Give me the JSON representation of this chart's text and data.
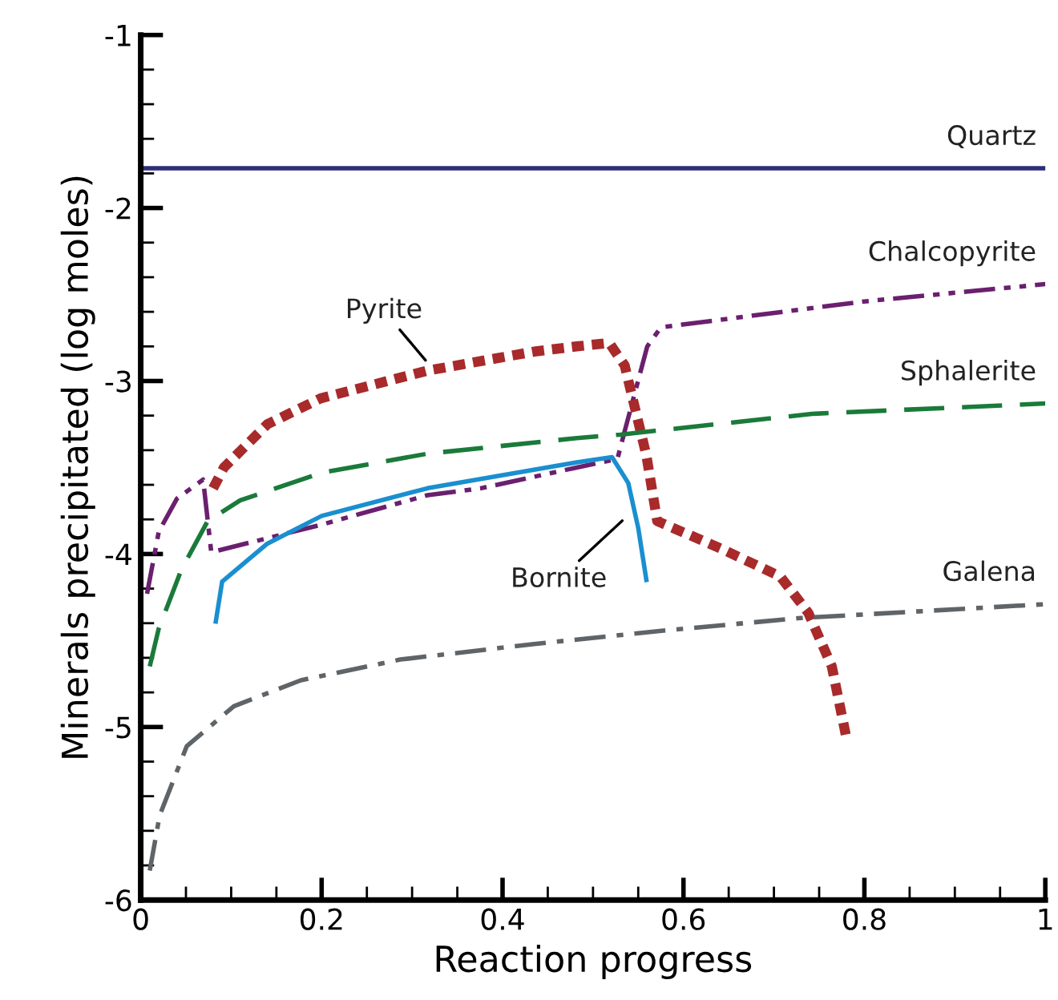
{
  "chart_data": {
    "type": "line",
    "xlabel": "Reaction progress",
    "ylabel": "Minerals precipitated (log moles)",
    "xlim": [
      0,
      1
    ],
    "xticks": [
      0,
      0.2,
      0.4,
      0.6,
      0.8,
      1
    ],
    "ylim": [
      -6,
      -1
    ],
    "yticks": [
      -6,
      -5,
      -4,
      -3,
      -2,
      -1
    ],
    "grid": false,
    "legend": false,
    "series": [
      {
        "name": "Quartz",
        "color": "#2b2f7a",
        "line_style": "solid",
        "x": [
          0,
          1
        ],
        "values": [
          -1.77,
          -1.77
        ]
      },
      {
        "name": "Chalcopyrite",
        "color": "#6b1f6f",
        "line_style": "dashdotdot",
        "x": [
          0.007,
          0.02,
          0.04,
          0.069,
          0.078,
          0.2,
          0.317,
          0.376,
          0.482,
          0.527,
          0.535,
          0.56,
          0.575,
          0.8,
          1.0
        ],
        "values": [
          -4.23,
          -3.87,
          -3.68,
          -3.57,
          -3.99,
          -3.83,
          -3.66,
          -3.62,
          -3.5,
          -3.45,
          -3.29,
          -2.8,
          -2.69,
          -2.54,
          -2.44
        ]
      },
      {
        "name": "Pyrite",
        "color": "#a82a2a",
        "line_style": "dotted",
        "x": [
          0.08,
          0.092,
          0.14,
          0.199,
          0.317,
          0.435,
          0.482,
          0.518,
          0.535,
          0.559,
          0.571,
          0.642,
          0.707,
          0.738,
          0.764,
          0.78
        ],
        "values": [
          -3.62,
          -3.5,
          -3.25,
          -3.1,
          -2.94,
          -2.83,
          -2.8,
          -2.78,
          -2.91,
          -3.43,
          -3.81,
          -3.97,
          -4.13,
          -4.34,
          -4.65,
          -5.06
        ]
      },
      {
        "name": "Sphalerite",
        "color": "#1a7a3a",
        "line_style": "dashed",
        "x": [
          0.01,
          0.02,
          0.045,
          0.074,
          0.11,
          0.2,
          0.317,
          0.482,
          0.53,
          0.742,
          1.0
        ],
        "values": [
          -4.65,
          -4.43,
          -4.09,
          -3.81,
          -3.69,
          -3.53,
          -3.42,
          -3.33,
          -3.31,
          -3.19,
          -3.13
        ]
      },
      {
        "name": "Bornite",
        "color": "#1a8fd0",
        "line_style": "solid",
        "x": [
          0.083,
          0.09,
          0.14,
          0.2,
          0.317,
          0.482,
          0.521,
          0.539,
          0.55,
          0.559
        ],
        "values": [
          -4.39,
          -4.16,
          -3.94,
          -3.78,
          -3.62,
          -3.47,
          -3.44,
          -3.59,
          -3.85,
          -4.15
        ]
      },
      {
        "name": "Galena",
        "color": "#5f6468",
        "line_style": "dashdot",
        "x": [
          0.01,
          0.021,
          0.051,
          0.103,
          0.177,
          0.287,
          0.435,
          0.583,
          0.73,
          1.0
        ],
        "values": [
          -5.83,
          -5.51,
          -5.11,
          -4.88,
          -4.73,
          -4.61,
          -4.52,
          -4.44,
          -4.37,
          -4.29
        ]
      }
    ]
  }
}
